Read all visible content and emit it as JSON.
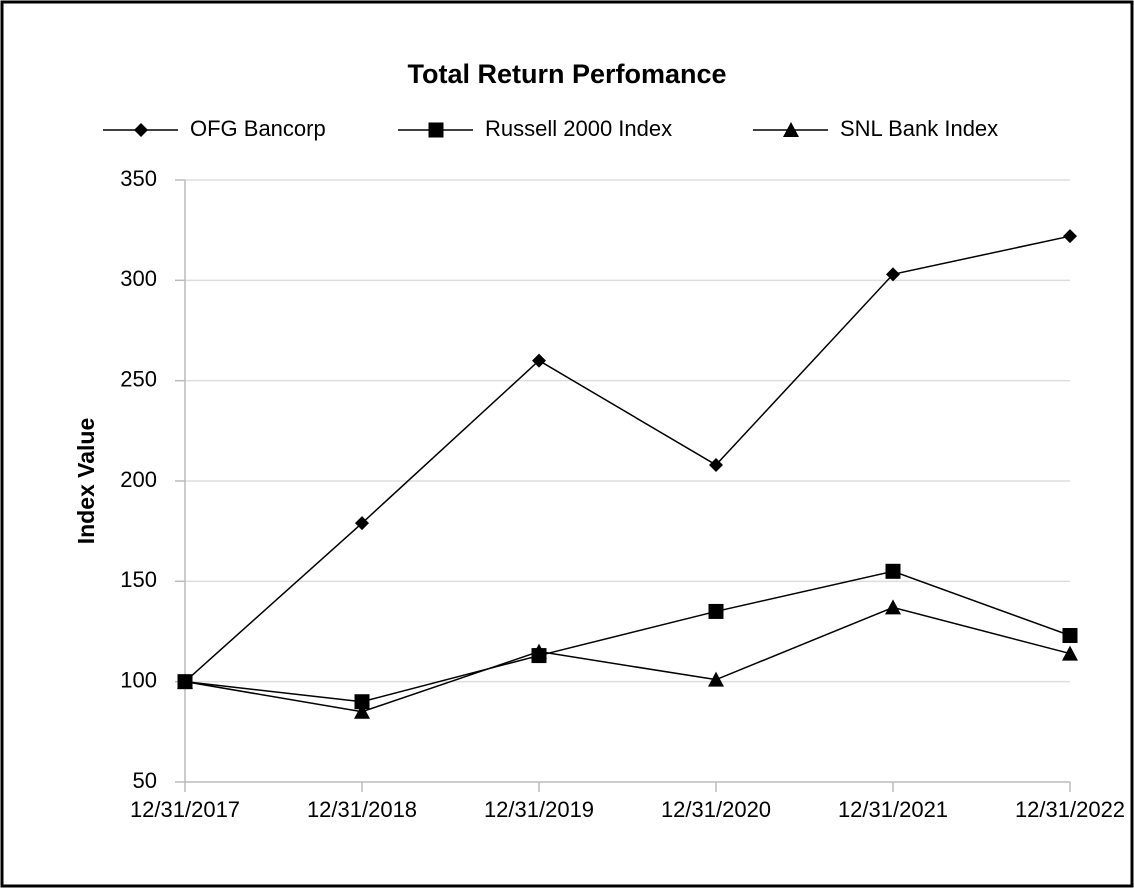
{
  "chart_data": {
    "type": "line",
    "title": "Total Return Perfomance",
    "y_label": "Index Value",
    "categories": [
      "12/31/2017",
      "12/31/2018",
      "12/31/2019",
      "12/31/2020",
      "12/31/2021",
      "12/31/2022"
    ],
    "series": [
      {
        "name": "OFG Bancorp",
        "color": "#000000",
        "marker": "diamond",
        "values": [
          100,
          179,
          260,
          208,
          303,
          322
        ]
      },
      {
        "name": "Russell 2000 Index",
        "color": "#000000",
        "marker": "square",
        "values": [
          100,
          90,
          113,
          135,
          155,
          123
        ]
      },
      {
        "name": "SNL Bank Index",
        "color": "#000000",
        "marker": "triangle",
        "values": [
          100,
          85,
          115,
          101,
          137,
          114
        ]
      }
    ],
    "ylim": [
      50,
      350
    ],
    "yticks": [
      50,
      100,
      150,
      200,
      250,
      300,
      350
    ],
    "grid": true
  }
}
